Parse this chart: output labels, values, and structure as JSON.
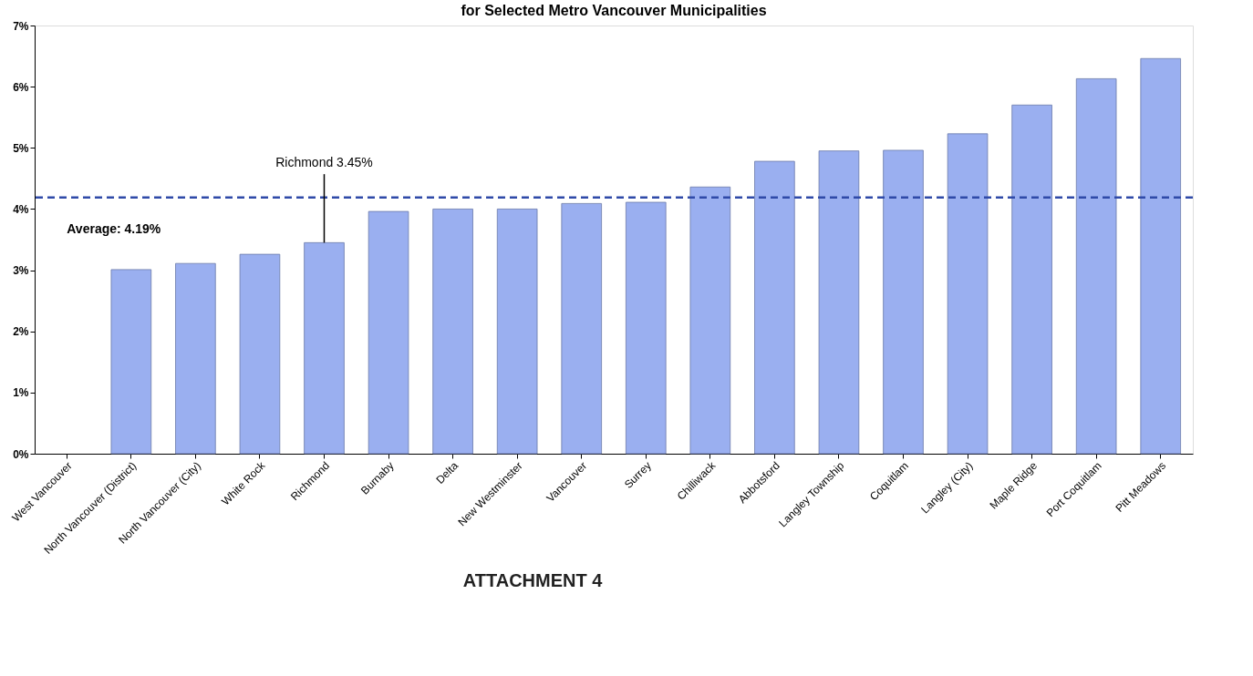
{
  "chart_data": {
    "type": "bar",
    "title": "for Selected Metro Vancouver Municipalities",
    "categories": [
      "West Vancouver",
      "North Vancouver (District)",
      "North Vancouver (City)",
      "White Rock",
      "Richmond",
      "Burnaby",
      "Delta",
      "New Westminster",
      "Vancouver",
      "Surrey",
      "Chilliwack",
      "Abbotsford",
      "Langley Township",
      "Coquitlam",
      "Langley (City)",
      "Maple Ridge",
      "Port Coquitlam",
      "Pitt Meadows"
    ],
    "values": [
      null,
      3.01,
      3.11,
      3.26,
      3.45,
      3.96,
      4.0,
      4.0,
      4.09,
      4.11,
      4.36,
      4.78,
      4.95,
      4.96,
      5.23,
      5.7,
      6.13,
      6.46
    ],
    "color": "#9aaff0",
    "ylim": [
      0,
      7
    ],
    "yticks": [
      {
        "value": 0,
        "label": "0%"
      },
      {
        "value": 1,
        "label": "1%"
      },
      {
        "value": 2,
        "label": "2%"
      },
      {
        "value": 3,
        "label": "3%"
      },
      {
        "value": 4,
        "label": "4%"
      },
      {
        "value": 5,
        "label": "5%"
      },
      {
        "value": 6,
        "label": "6%"
      },
      {
        "value": 7,
        "label": "7%"
      }
    ],
    "grid": false,
    "ref_lines": [
      {
        "axis": "y",
        "value": 4.19,
        "label": "Average: 4.19%",
        "color": "#2f4aa8",
        "line_style": "dashed"
      }
    ],
    "annotations": [
      {
        "text": "Richmond 3.45%",
        "x": "Richmond",
        "y": 3.45
      },
      "ATTACHMENT 4"
    ]
  }
}
